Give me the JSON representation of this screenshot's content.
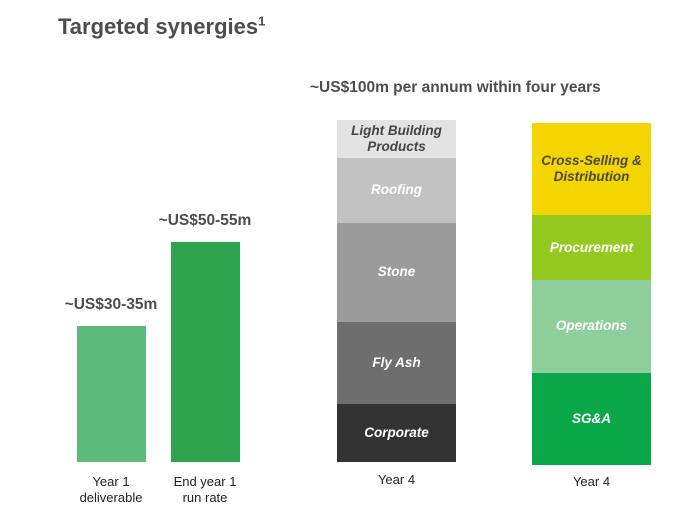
{
  "header": {
    "title": "Targeted synergies",
    "footnote_marker": "1"
  },
  "subtitle": "~US$100m per annum within four years",
  "chart_data": [
    {
      "type": "bar",
      "categories": [
        "Year 1 deliverable",
        "End year 1 run rate"
      ],
      "category_lines": [
        [
          "Year 1",
          "deliverable"
        ],
        [
          "End year 1",
          "run rate"
        ]
      ],
      "values_range_usd_m": [
        [
          30,
          35
        ],
        [
          50,
          55
        ]
      ],
      "data_labels": [
        "~US$30-35m",
        "~US$50-55m"
      ],
      "ylim": [
        0,
        100
      ],
      "colors": [
        "#5cbb7c",
        "#2ea44f"
      ]
    },
    {
      "type": "bar",
      "stacked": true,
      "total_label": "~US$100m per annum within four years",
      "categories": [
        "Year 4",
        "Year 4"
      ],
      "ylim": [
        0,
        100
      ],
      "stacks": [
        {
          "segments": [
            {
              "name": "Corporate",
              "value": 17,
              "color": "#333333",
              "text_color": "#ffffff"
            },
            {
              "name": "Fly Ash",
              "value": 24,
              "color": "#6e6e6e",
              "text_color": "#ffffff"
            },
            {
              "name": "Stone",
              "value": 29,
              "color": "#9b9b9b",
              "text_color": "#ffffff"
            },
            {
              "name": "Roofing",
              "value": 19,
              "color": "#c2c2c2",
              "text_color": "#ffffff"
            },
            {
              "name": "Light Building Products",
              "value": 11,
              "color": "#e3e3e3",
              "text_color": "#444444"
            }
          ]
        },
        {
          "segments": [
            {
              "name": "SG&A",
              "value": 27,
              "color": "#0ba84a",
              "text_color": "#ffffff"
            },
            {
              "name": "Operations",
              "value": 27,
              "color": "#8fcf9c",
              "text_color": "#ffffff"
            },
            {
              "name": "Procurement",
              "value": 19,
              "color": "#94c91f",
              "text_color": "#ffffff"
            },
            {
              "name": "Cross-Selling & Distribution",
              "value": 27,
              "color": "#f5d500",
              "text_color": "#4a4a4a"
            }
          ]
        }
      ]
    }
  ]
}
